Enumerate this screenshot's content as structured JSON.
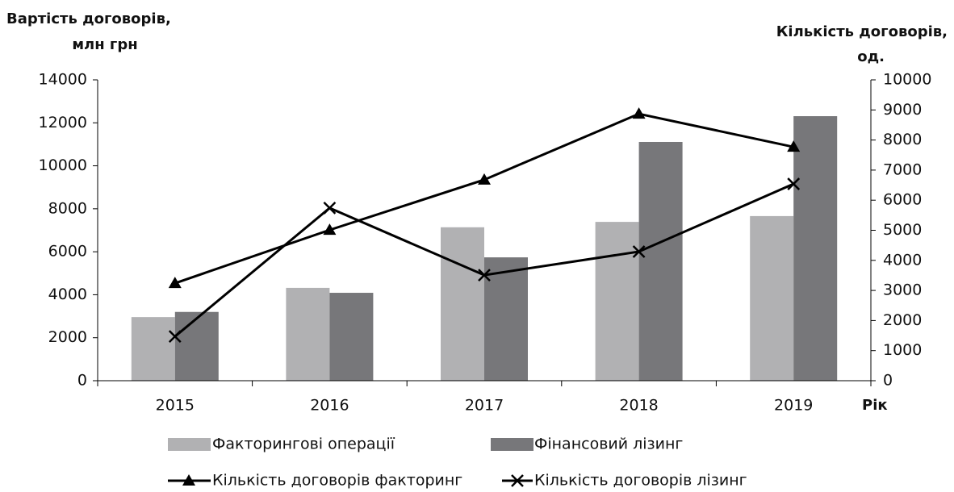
{
  "chart_data": {
    "type": "bar",
    "ylabel": [
      "Вартість договорів,",
      "млн грн"
    ],
    "y2label": [
      "Кількість договорів,",
      "од."
    ],
    "xlabel": "Рік",
    "categories": [
      "2015",
      "2016",
      "2017",
      "2018",
      "2019"
    ],
    "series": [
      {
        "name": "Факторингові операції",
        "color": "#b1b1b3",
        "values": [
          2960,
          4320,
          7140,
          7390,
          7660
        ]
      },
      {
        "name": "Фінансовий лізинг",
        "color": "#77777a",
        "values": [
          3200,
          4090,
          5740,
          11110,
          12310
        ]
      },
      {
        "name": "Кількість договорів факторинг",
        "type": "line",
        "marker": "triangle",
        "axis": "y2",
        "color": "#000000",
        "values": [
          3240,
          5010,
          6680,
          8870,
          7770
        ]
      },
      {
        "name": "Кількість договорів лізинг",
        "type": "line",
        "marker": "x",
        "axis": "y2",
        "color": "#000000",
        "values": [
          1470,
          5740,
          3510,
          4290,
          6540
        ]
      }
    ],
    "ylim": [
      0,
      14000
    ],
    "yticks": [
      0,
      2000,
      4000,
      6000,
      8000,
      10000,
      12000,
      14000
    ],
    "y2lim": [
      0,
      10000
    ],
    "y2ticks": [
      0,
      1000,
      2000,
      3000,
      4000,
      5000,
      6000,
      7000,
      8000,
      9000,
      10000
    ],
    "grid": false
  }
}
